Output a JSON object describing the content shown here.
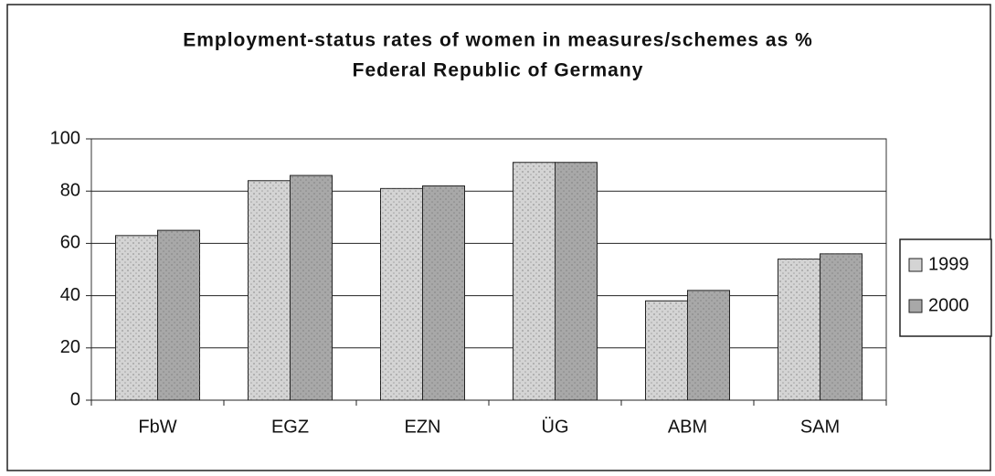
{
  "chart_data": {
    "type": "bar",
    "title": "Employment-status rates of women in measures/schemes as %",
    "subtitle": "Federal Republic of Germany",
    "categories": [
      "FbW",
      "EGZ",
      "EZN",
      "ÜG",
      "ABM",
      "SAM"
    ],
    "series": [
      {
        "name": "1999",
        "color": "#d4d4d4",
        "values": [
          63,
          84,
          81,
          91,
          38,
          54
        ]
      },
      {
        "name": "2000",
        "color": "#a8a8a8",
        "values": [
          65,
          86,
          82,
          91,
          42,
          56
        ]
      }
    ],
    "ylim": [
      0,
      100
    ],
    "yticks": [
      0,
      20,
      40,
      60,
      80,
      100
    ],
    "grid": true,
    "legend": "right"
  }
}
